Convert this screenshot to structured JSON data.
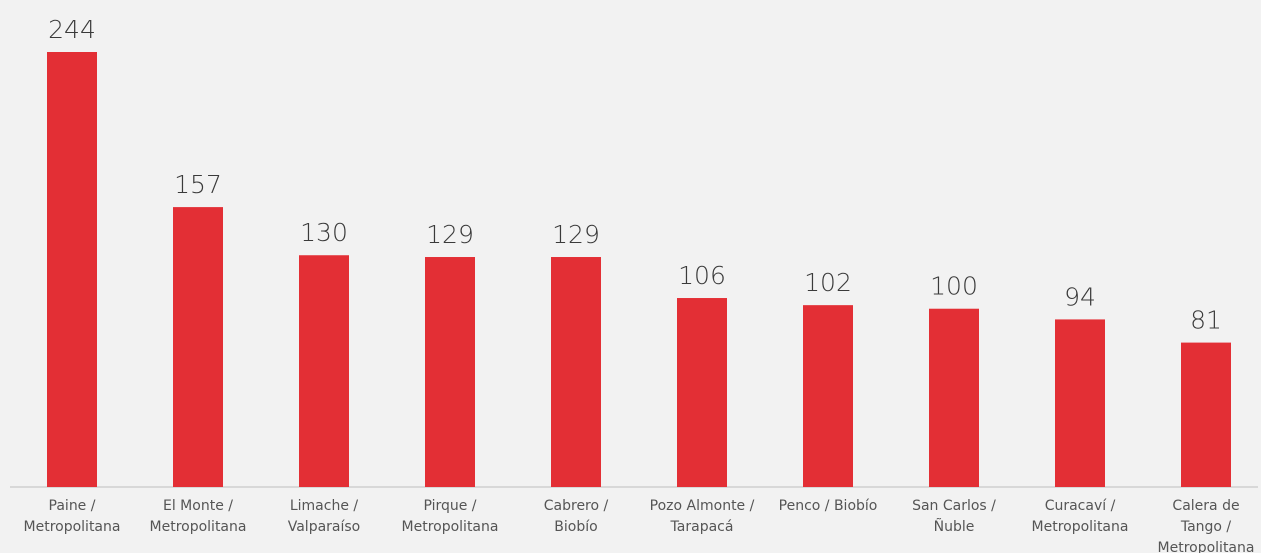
{
  "chart_data": {
    "type": "bar",
    "categories": [
      [
        "Paine /",
        "Metropolitana"
      ],
      [
        "El Monte /",
        "Metropolitana"
      ],
      [
        "Limache /",
        "Valparaíso"
      ],
      [
        "Pirque /",
        "Metropolitana"
      ],
      [
        "Cabrero /",
        "Biobío"
      ],
      [
        "Pozo Almonte /",
        "Tarapacá"
      ],
      [
        "Penco / Biobío"
      ],
      [
        "San Carlos /",
        "Ñuble"
      ],
      [
        "Curacaví /",
        "Metropolitana"
      ],
      [
        "Calera de",
        "Tango /",
        "Metropolitana"
      ]
    ],
    "values": [
      244,
      157,
      130,
      129,
      129,
      106,
      102,
      100,
      94,
      81
    ],
    "ylim": [
      0,
      244
    ],
    "colors": {
      "bar": "#e32f35",
      "axis": "#bfbfbf",
      "value_label": "#3a3a3a",
      "category_label": "#555555"
    },
    "grid": false,
    "legend": "none"
  }
}
